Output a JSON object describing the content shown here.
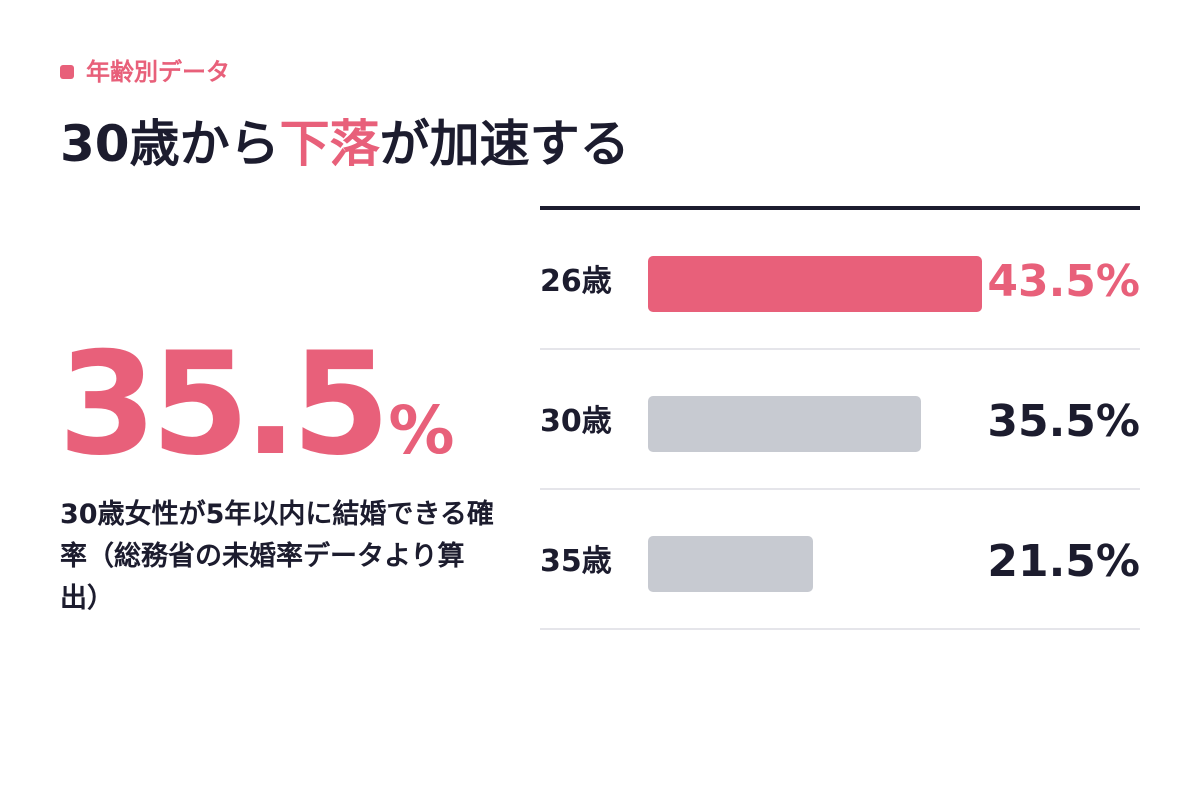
{
  "colors": {
    "accent": "#e8607a",
    "text": "#1c1c2e",
    "bar_muted": "#c7cad1",
    "divider": "#e5e5ea"
  },
  "tag": {
    "label": "年齢別データ"
  },
  "title": {
    "before": "30歳から",
    "highlight": "下落",
    "after": "が加速する"
  },
  "headline": {
    "value": "35.5",
    "unit": "%"
  },
  "description": "30歳女性が5年以内に結婚できる確率（総務省の未婚率データより算出）",
  "chart_data": {
    "type": "bar",
    "orientation": "horizontal",
    "categories": [
      "26歳",
      "30歳",
      "35歳"
    ],
    "values": [
      43.5,
      35.5,
      21.5
    ],
    "value_labels": [
      "43.5%",
      "35.5%",
      "21.5%"
    ],
    "highlight_index": 0,
    "xlim": [
      0,
      50
    ]
  }
}
